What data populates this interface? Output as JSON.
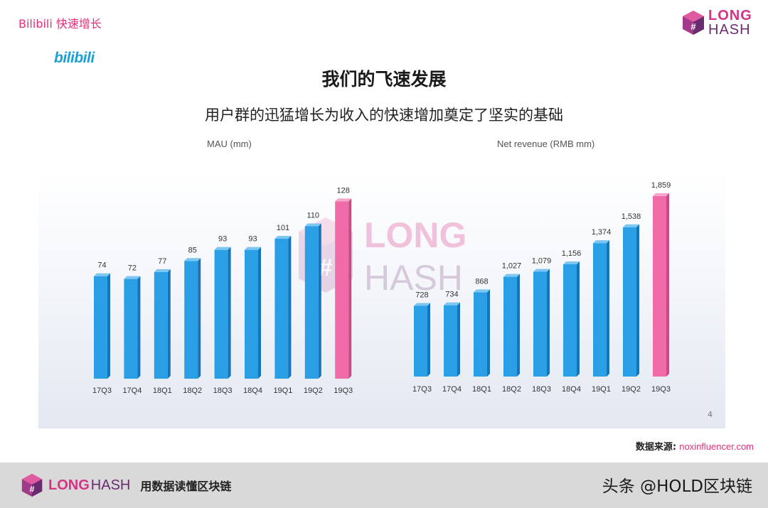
{
  "header": {
    "section_label": "Bilibili 快速增长",
    "brand_line1": "LONG",
    "brand_line2": "HASH",
    "company_logo": "bilibili"
  },
  "slide": {
    "title": "我们的飞速发展",
    "subtitle": "用户群的迅猛增长为收入的快速增加奠定了坚实的基础",
    "page_number": "4"
  },
  "watermark": {
    "line1": "LONG",
    "line2": "HASH"
  },
  "chart_data": [
    {
      "type": "bar",
      "title": "MAU (mm)",
      "categories": [
        "17Q3",
        "17Q4",
        "18Q1",
        "18Q2",
        "18Q3",
        "18Q4",
        "19Q1",
        "19Q2",
        "19Q3"
      ],
      "values": [
        74,
        72,
        77,
        85,
        93,
        93,
        101,
        110,
        128
      ],
      "value_labels": [
        "74",
        "72",
        "77",
        "85",
        "93",
        "93",
        "101",
        "110",
        "128"
      ],
      "highlight_index": 8,
      "ylim": [
        0,
        130
      ]
    },
    {
      "type": "bar",
      "title": "Net revenue (RMB mm)",
      "categories": [
        "17Q3",
        "17Q4",
        "18Q1",
        "18Q2",
        "18Q3",
        "18Q4",
        "19Q1",
        "19Q2",
        "19Q3"
      ],
      "values": [
        728,
        734,
        868,
        1027,
        1079,
        1156,
        1374,
        1538,
        1859
      ],
      "value_labels": [
        "728",
        "734",
        "868",
        "1,027",
        "1,079",
        "1,156",
        "1,374",
        "1,538",
        "1,859"
      ],
      "highlight_index": 8,
      "ylim": [
        0,
        1880
      ]
    }
  ],
  "colors": {
    "bar": "#2a9fe6",
    "bar_highlight": "#f06ba8",
    "accent": "#e0307a",
    "brand_purple": "#6a2c70"
  },
  "source": {
    "label": "数据来源:",
    "value": "noxinfluencer.com"
  },
  "footer": {
    "brand_line1": "LONG",
    "brand_line2": "HASH",
    "slogan": "用数据读懂区块链",
    "watermark": "头条 @HOLD区块链"
  }
}
